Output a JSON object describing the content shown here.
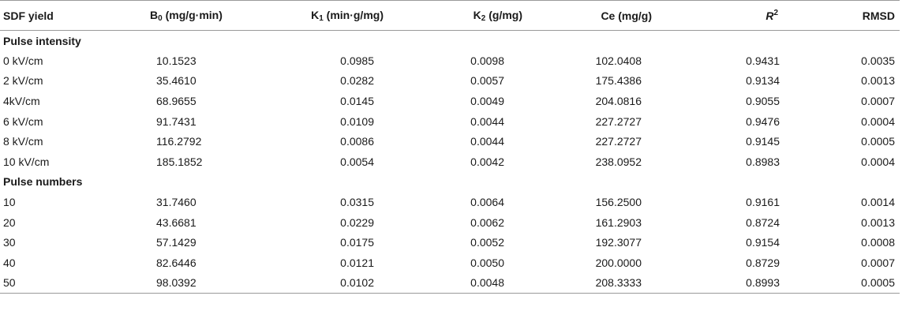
{
  "headers": {
    "col0": "SDF yield",
    "b0_main": "B",
    "b0_sub": "0",
    "b0_unit": " (mg/g·min)",
    "k1_main": "K",
    "k1_sub": "1",
    "k1_unit": " (min·g/mg)",
    "k2_main": "K",
    "k2_sub": "2",
    "k2_unit": " (g/mg)",
    "ce": "Ce (mg/g)",
    "r2_main": "R",
    "r2_sup": "2",
    "rmsd": "RMSD"
  },
  "sections": [
    {
      "title": "Pulse intensity",
      "rows": [
        {
          "label": "0 kV/cm",
          "b0": "10.1523",
          "k1": "0.0985",
          "k2": "0.0098",
          "ce": "102.0408",
          "r2": "0.9431",
          "rmsd": "0.0035"
        },
        {
          "label": "2 kV/cm",
          "b0": "35.4610",
          "k1": "0.0282",
          "k2": "0.0057",
          "ce": "175.4386",
          "r2": "0.9134",
          "rmsd": "0.0013"
        },
        {
          "label": "4kV/cm",
          "b0": "68.9655",
          "k1": "0.0145",
          "k2": "0.0049",
          "ce": "204.0816",
          "r2": "0.9055",
          "rmsd": "0.0007"
        },
        {
          "label": "6 kV/cm",
          "b0": "91.7431",
          "k1": "0.0109",
          "k2": "0.0044",
          "ce": "227.2727",
          "r2": "0.9476",
          "rmsd": "0.0004"
        },
        {
          "label": "8 kV/cm",
          "b0": "116.2792",
          "k1": "0.0086",
          "k2": "0.0044",
          "ce": "227.2727",
          "r2": "0.9145",
          "rmsd": "0.0005"
        },
        {
          "label": "10 kV/cm",
          "b0": "185.1852",
          "k1": "0.0054",
          "k2": "0.0042",
          "ce": "238.0952",
          "r2": "0.8983",
          "rmsd": "0.0004"
        }
      ]
    },
    {
      "title": "Pulse numbers",
      "rows": [
        {
          "label": "10",
          "b0": "31.7460",
          "k1": "0.0315",
          "k2": "0.0064",
          "ce": "156.2500",
          "r2": "0.9161",
          "rmsd": "0.0014"
        },
        {
          "label": "20",
          "b0": "43.6681",
          "k1": "0.0229",
          "k2": "0.0062",
          "ce": "161.2903",
          "r2": "0.8724",
          "rmsd": "0.0013"
        },
        {
          "label": "30",
          "b0": "57.1429",
          "k1": "0.0175",
          "k2": "0.0052",
          "ce": "192.3077",
          "r2": "0.9154",
          "rmsd": "0.0008"
        },
        {
          "label": "40",
          "b0": "82.6446",
          "k1": "0.0121",
          "k2": "0.0050",
          "ce": "200.0000",
          "r2": "0.8729",
          "rmsd": "0.0007"
        },
        {
          "label": "50",
          "b0": "98.0392",
          "k1": "0.0102",
          "k2": "0.0048",
          "ce": "208.3333",
          "r2": "0.8993",
          "rmsd": "0.0005"
        }
      ]
    }
  ]
}
